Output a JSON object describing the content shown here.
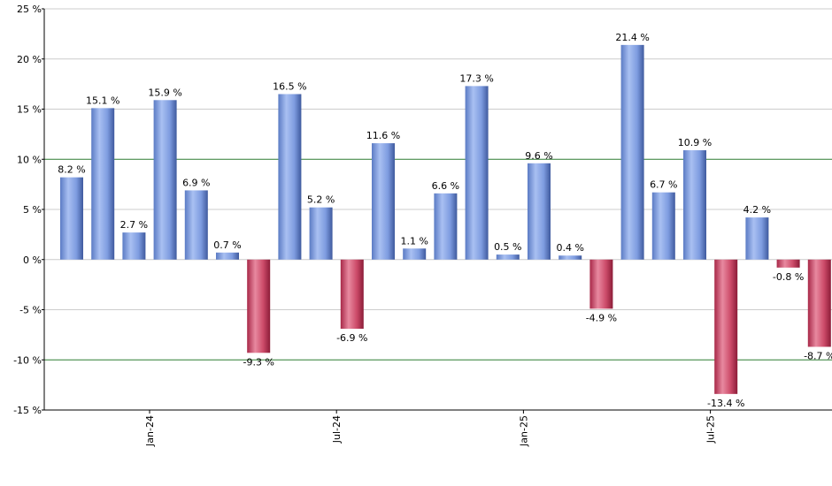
{
  "chart_data": {
    "type": "bar",
    "title": "",
    "xlabel": "",
    "ylabel": "",
    "ylim": [
      -15,
      25
    ],
    "yticks": [
      25,
      20,
      15,
      10,
      5,
      0,
      -5,
      -10,
      -15
    ],
    "ytick_labels": [
      "25 %",
      "20 %",
      "15 %",
      "10 %",
      "5 %",
      "0 %",
      "-5 %",
      "-10 %",
      "-15 %"
    ],
    "xtick_labels": [
      "Jan-24",
      "Jul-24",
      "Jan-25",
      "Jul-25"
    ],
    "xtick_positions": [
      3,
      9,
      15,
      21
    ],
    "reference_lines": [
      10,
      -10
    ],
    "grid": true,
    "legend": "none",
    "colors": {
      "positive": "#6f8fdc",
      "negative": "#c43a58",
      "reference": "#2e7d32",
      "grid": "#cccccc"
    },
    "values": [
      8.2,
      15.1,
      2.7,
      15.9,
      6.9,
      0.7,
      -9.3,
      16.5,
      5.2,
      -6.9,
      11.6,
      1.1,
      6.6,
      17.3,
      0.5,
      9.6,
      0.4,
      -4.9,
      21.4,
      6.7,
      10.9,
      -13.4,
      4.2,
      -0.8,
      -8.7
    ],
    "labels": [
      "8.2 %",
      "15.1 %",
      "2.7 %",
      "15.9 %",
      "6.9 %",
      "0.7 %",
      "-9.3 %",
      "16.5 %",
      "5.2 %",
      "-6.9 %",
      "11.6 %",
      "1.1 %",
      "6.6 %",
      "17.3 %",
      "0.5 %",
      "9.6 %",
      "0.4 %",
      "-4.9 %",
      "21.4 %",
      "6.7 %",
      "10.9 %",
      "-13.4 %",
      "4.2 %",
      "-0.8 %",
      "-8.7 %"
    ]
  }
}
